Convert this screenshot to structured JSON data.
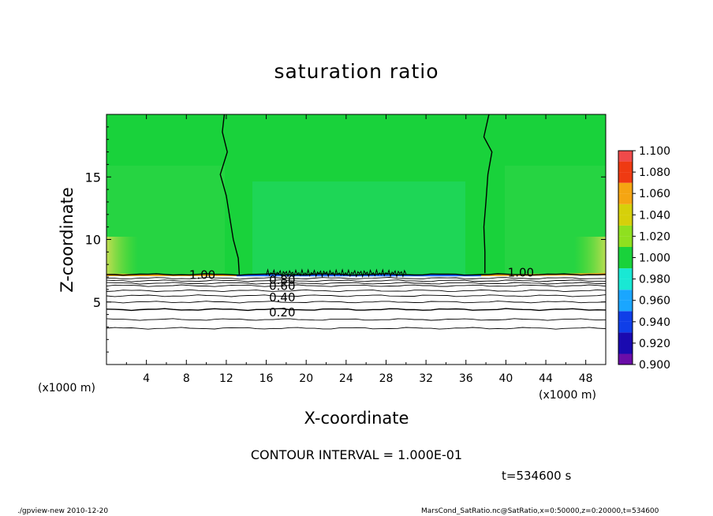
{
  "chart_data": {
    "type": "heatmap",
    "title": "saturation ratio",
    "xlabel": "X-coordinate",
    "ylabel": "Z-coordinate",
    "x_unit_left": "(x1000 m)",
    "x_unit_right": "(x1000 m)",
    "xlim": [
      0,
      50
    ],
    "ylim": [
      0,
      20
    ],
    "x_ticks": [
      "4",
      "8",
      "12",
      "16",
      "20",
      "24",
      "28",
      "32",
      "36",
      "40",
      "44",
      "48"
    ],
    "y_ticks": [
      "5",
      "10",
      "15"
    ],
    "colorbar": {
      "levels": [
        "0.900",
        "0.920",
        "0.940",
        "0.960",
        "0.980",
        "1.000",
        "1.020",
        "1.040",
        "1.060",
        "1.080",
        "1.100"
      ],
      "colors": [
        "#6a0da8",
        "#1a0ab0",
        "#0f3ee8",
        "#1aa6ff",
        "#19e8d4",
        "#19d23b",
        "#8fe01f",
        "#d6d00a",
        "#f5a512",
        "#ef3a12",
        "#f04a4a",
        "#f9a3a8"
      ]
    },
    "contours": [
      {
        "label": "0.20",
        "z": 4.4
      },
      {
        "label": "0.40",
        "z": 5.5
      },
      {
        "label": "0.60",
        "z": 6.3
      },
      {
        "label": "0.80",
        "z": 6.7
      },
      {
        "label": "1.00",
        "z": 7.2
      }
    ],
    "contour_interval": "CONTOUR INTERVAL = 1.000E-01",
    "time": "t=534600 s",
    "footer_left": "./gpview-new  2010-12-20",
    "footer_right": "MarsCond_SatRatio.nc@SatRatio,x=0:50000,z=0:20000,t=534600",
    "colors": {
      "field_main": "#19d23b",
      "field_light": "#3bd84a",
      "field_cyan": "#28dc74",
      "surface_layer": "#ffffff"
    }
  }
}
